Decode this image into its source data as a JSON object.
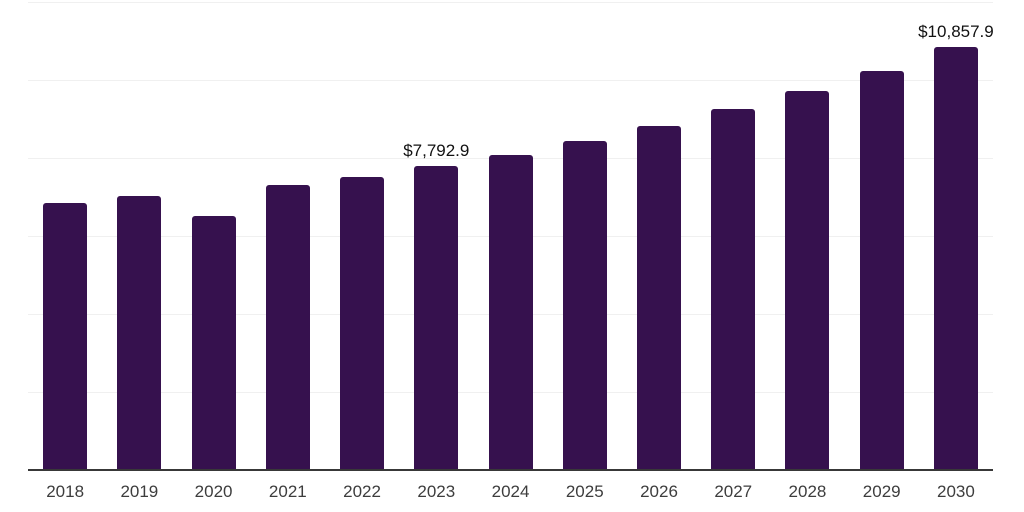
{
  "chart_data": {
    "type": "bar",
    "title": "",
    "xlabel": "",
    "ylabel": "",
    "categories": [
      "2018",
      "2019",
      "2020",
      "2021",
      "2022",
      "2023",
      "2024",
      "2025",
      "2026",
      "2027",
      "2028",
      "2029",
      "2030"
    ],
    "values": [
      6840,
      7020,
      6520,
      7300,
      7510,
      7792.9,
      8080,
      8430,
      8810,
      9250,
      9730,
      10240,
      10857.9
    ],
    "value_labels": [
      "",
      "",
      "",
      "",
      "",
      "$7,792.9",
      "",
      "",
      "",
      "",
      "",
      "",
      "$10,857.9"
    ],
    "ylim": [
      0,
      12000
    ],
    "gridlines": [
      2000,
      4000,
      6000,
      8000,
      10000,
      12000
    ],
    "grid_on": true,
    "legend": "none",
    "bar_color": "#36114E",
    "axis_color": "#383838",
    "gridline_color": "#f0f0f0",
    "value_label_color": "#111111",
    "tick_label_color": "#3d3d3d"
  }
}
